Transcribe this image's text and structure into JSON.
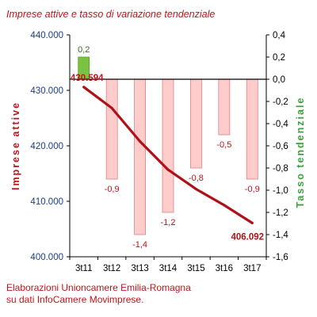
{
  "title": "Imprese attive e tasso di variazione tendenziale",
  "footer": {
    "line1": "Elaborazioni Unioncamere Emilia-Romagna",
    "line2": "su dati InfoCamere Movimprese."
  },
  "chart_data": {
    "type": "bar+line",
    "categories": [
      "3t11",
      "3t12",
      "3t13",
      "3t14",
      "3t15",
      "3t16",
      "3t17"
    ],
    "left_axis": {
      "label": "Imprese attive",
      "range": [
        400000,
        440000
      ],
      "ticks": [
        400000,
        410000,
        420000,
        430000,
        440000
      ],
      "tick_labels": [
        "400.000",
        "410.000",
        "420.000",
        "430.000",
        "440.000"
      ],
      "color": "#c0141c"
    },
    "right_axis": {
      "label": "Tasso tendenziale",
      "range": [
        -1.6,
        0.4
      ],
      "ticks": [
        0.4,
        0.2,
        0.0,
        -0.2,
        -0.4,
        -0.6,
        -0.8,
        -1.0,
        -1.2,
        -1.4,
        -1.6
      ],
      "tick_labels": [
        "0,4",
        "0,2",
        "0,0",
        "-0,2",
        "-0,4",
        "-0,6",
        "-0,8",
        "-1,0",
        "-1,2",
        "-1,4",
        "-1,6"
      ],
      "color": "#3aa23a"
    },
    "bars": {
      "axis": "right",
      "values": [
        0.2,
        -0.9,
        -1.4,
        -1.2,
        -0.8,
        -0.5,
        -0.9
      ],
      "labels": [
        "0,2",
        "-0,9",
        "-1,4",
        "-1,2",
        "-0,8",
        "-0,5",
        "-0,9"
      ],
      "positive_color": "#7cc242",
      "negative_color": "#ffcccc",
      "negative_stroke": "#e08080"
    },
    "line": {
      "axis": "left",
      "values": [
        430594,
        426800,
        420800,
        415700,
        412200,
        409300,
        406092
      ],
      "color": "#b01018",
      "start_label": "430.594",
      "end_label": "406.092"
    }
  }
}
